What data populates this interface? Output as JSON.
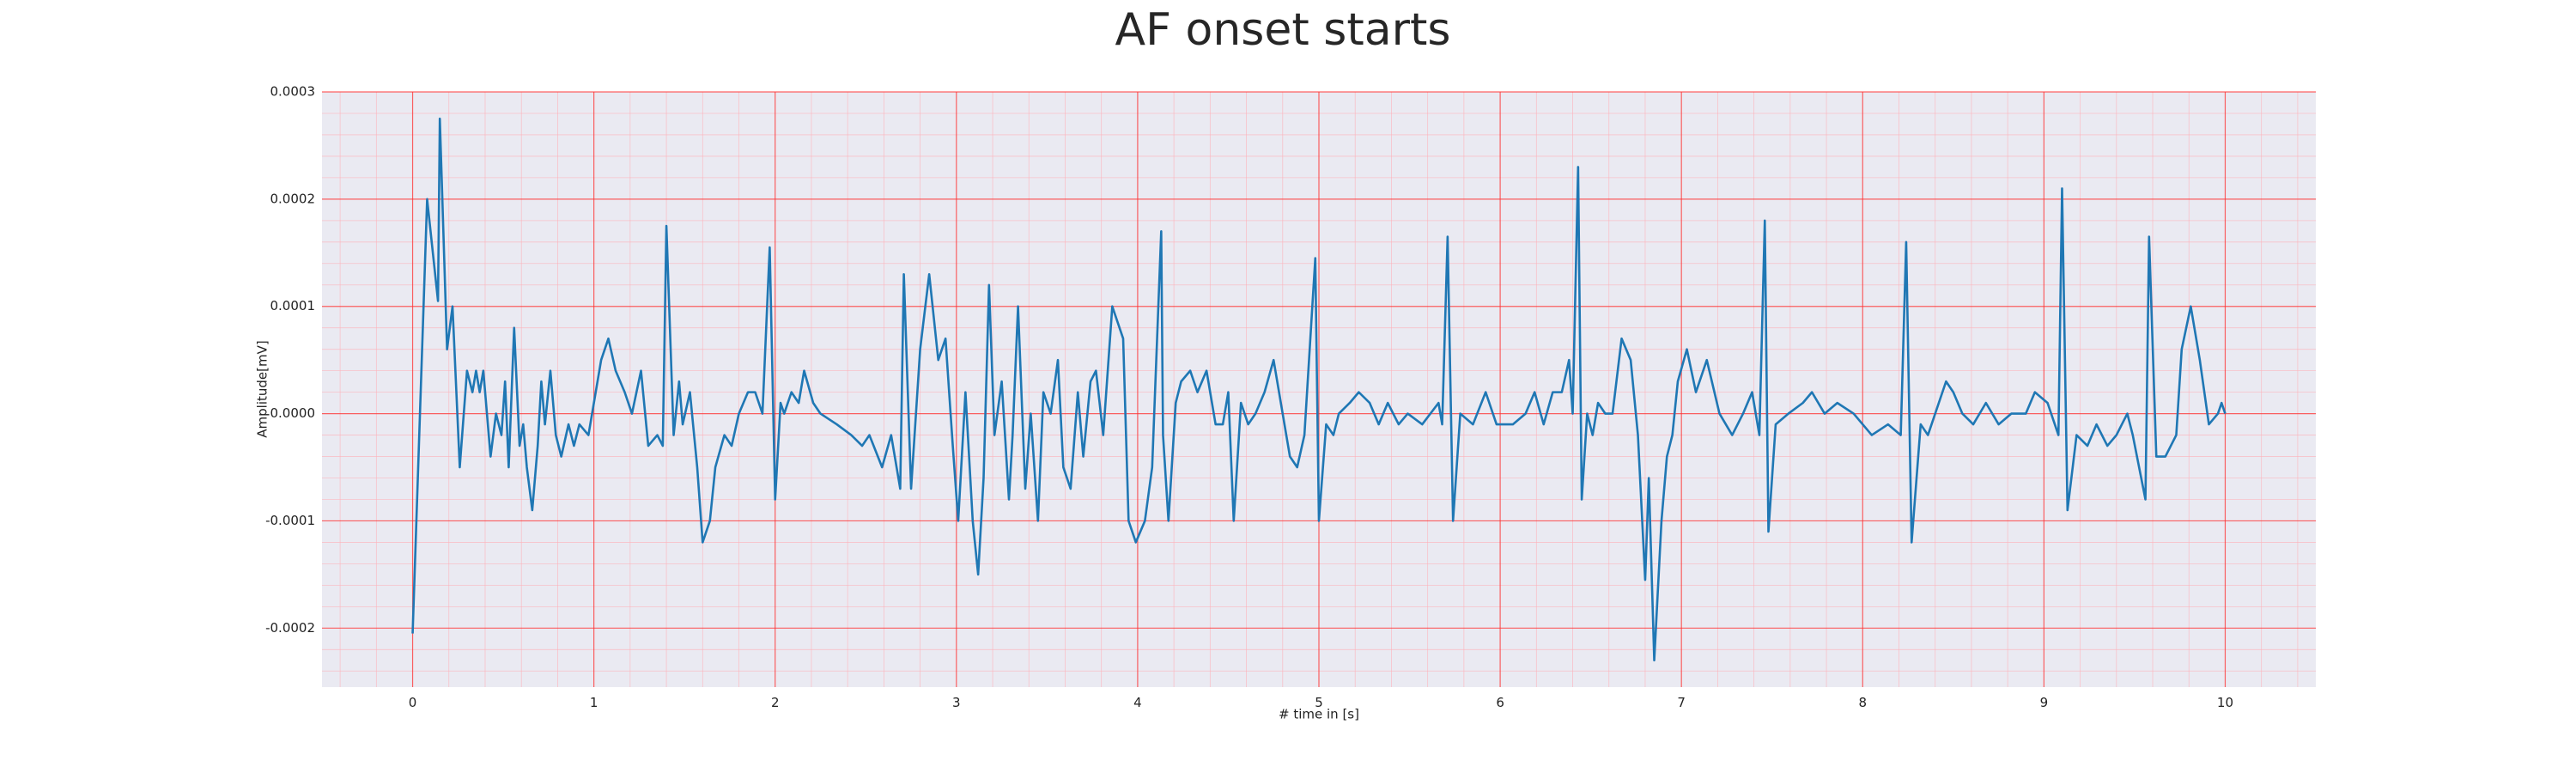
{
  "chart_data": {
    "type": "line",
    "title": "AF onset starts",
    "xlabel": "# time in [s]",
    "ylabel": "Amplitude[mV]",
    "color": "#1f77b4",
    "grid": true,
    "minor_grid": true,
    "xlim": [
      -0.5,
      10.5
    ],
    "xticks": [
      0,
      1,
      2,
      3,
      4,
      5,
      6,
      7,
      8,
      9,
      10
    ],
    "ylim": [
      -0.000255,
      0.0003
    ],
    "yticks": [
      0.0003,
      0.0002,
      0.0001,
      {
        "value": 0,
        "label": "0.0000"
      },
      -0.0001,
      -0.0002
    ],
    "x": [
      0,
      0.08,
      0.14,
      0.15,
      0.19,
      0.22,
      0.26,
      0.3,
      0.33,
      0.35,
      0.37,
      0.39,
      0.43,
      0.46,
      0.49,
      0.51,
      0.53,
      0.56,
      0.59,
      0.61,
      0.63,
      0.66,
      0.69,
      0.71,
      0.73,
      0.76,
      0.79,
      0.82,
      0.86,
      0.89,
      0.92,
      0.97,
      1.04,
      1.08,
      1.12,
      1.17,
      1.21,
      1.26,
      1.3,
      1.35,
      1.38,
      1.4,
      1.44,
      1.47,
      1.49,
      1.53,
      1.57,
      1.6,
      1.64,
      1.67,
      1.72,
      1.76,
      1.8,
      1.85,
      1.89,
      1.93,
      1.97,
      2.0,
      2.03,
      2.05,
      2.09,
      2.13,
      2.16,
      2.21,
      2.25,
      2.34,
      2.42,
      2.48,
      2.52,
      2.59,
      2.64,
      2.69,
      2.71,
      2.75,
      2.8,
      2.85,
      2.9,
      2.94,
      2.98,
      3.01,
      3.05,
      3.09,
      3.12,
      3.15,
      3.18,
      3.21,
      3.25,
      3.29,
      3.31,
      3.34,
      3.38,
      3.41,
      3.45,
      3.48,
      3.52,
      3.56,
      3.59,
      3.63,
      3.67,
      3.7,
      3.74,
      3.77,
      3.81,
      3.86,
      3.92,
      3.95,
      3.99,
      4.04,
      4.08,
      4.13,
      4.14,
      4.17,
      4.21,
      4.24,
      4.29,
      4.33,
      4.38,
      4.43,
      4.47,
      4.5,
      4.53,
      4.57,
      4.61,
      4.65,
      4.7,
      4.75,
      4.79,
      4.84,
      4.88,
      4.92,
      4.98,
      5.0,
      5.04,
      5.08,
      5.11,
      5.17,
      5.22,
      5.28,
      5.33,
      5.38,
      5.44,
      5.49,
      5.57,
      5.66,
      5.68,
      5.71,
      5.74,
      5.78,
      5.85,
      5.92,
      5.98,
      6.07,
      6.14,
      6.19,
      6.24,
      6.29,
      6.34,
      6.38,
      6.4,
      6.43,
      6.45,
      6.48,
      6.51,
      6.54,
      6.58,
      6.62,
      6.67,
      6.72,
      6.76,
      6.8,
      6.82,
      6.85,
      6.89,
      6.92,
      6.95,
      6.98,
      7.03,
      7.08,
      7.14,
      7.21,
      7.28,
      7.34,
      7.39,
      7.43,
      7.46,
      7.48,
      7.52,
      7.59,
      7.67,
      7.72,
      7.79,
      7.86,
      7.95,
      8.05,
      8.14,
      8.21,
      8.24,
      8.27,
      8.32,
      8.36,
      8.46,
      8.5,
      8.55,
      8.61,
      8.68,
      8.75,
      8.82,
      8.9,
      8.95,
      9.02,
      9.08,
      9.1,
      9.13,
      9.18,
      9.24,
      9.29,
      9.35,
      9.4,
      9.46,
      9.49,
      9.56,
      9.58,
      9.62,
      9.67,
      9.73,
      9.76,
      9.81,
      9.86,
      9.91,
      9.96,
      9.98,
      10.0
    ],
    "values": [
      -0.000205,
      0.0002,
      0.000105,
      0.000275,
      6e-05,
      0.0001,
      -5e-05,
      4e-05,
      2e-05,
      4e-05,
      2e-05,
      4e-05,
      -4e-05,
      0,
      -2e-05,
      3e-05,
      -5e-05,
      8e-05,
      -3e-05,
      -1e-05,
      -5e-05,
      -9e-05,
      -3e-05,
      3e-05,
      -1e-05,
      4e-05,
      -2e-05,
      -4e-05,
      -1e-05,
      -3e-05,
      -1e-05,
      -2e-05,
      5e-05,
      7e-05,
      4e-05,
      2e-05,
      0,
      4e-05,
      -3e-05,
      -2e-05,
      -3e-05,
      0.000175,
      -2e-05,
      3e-05,
      -1e-05,
      2e-05,
      -5e-05,
      -0.00012,
      -0.0001,
      -5e-05,
      -2e-05,
      -3e-05,
      0,
      2e-05,
      2e-05,
      0,
      0.000155,
      -8e-05,
      1e-05,
      0,
      2e-05,
      1e-05,
      4e-05,
      1e-05,
      0,
      -1e-05,
      -2e-05,
      -3e-05,
      -2e-05,
      -5e-05,
      -2e-05,
      -7e-05,
      0.00013,
      -7e-05,
      6e-05,
      0.00013,
      5e-05,
      7e-05,
      -3e-05,
      -0.0001,
      2e-05,
      -0.0001,
      -0.00015,
      -6e-05,
      0.00012,
      -2e-05,
      3e-05,
      -8e-05,
      -2e-05,
      0.0001,
      -7e-05,
      0,
      -0.0001,
      2e-05,
      0,
      5e-05,
      -5e-05,
      -7e-05,
      2e-05,
      -4e-05,
      3e-05,
      4e-05,
      -2e-05,
      0.0001,
      7e-05,
      -0.0001,
      -0.00012,
      -0.0001,
      -5e-05,
      0.00017,
      -2e-05,
      -0.0001,
      1e-05,
      3e-05,
      4e-05,
      2e-05,
      4e-05,
      -1e-05,
      -1e-05,
      2e-05,
      -0.0001,
      1e-05,
      -1e-05,
      0,
      2e-05,
      5e-05,
      1e-05,
      -4e-05,
      -5e-05,
      -2e-05,
      0.000145,
      -0.0001,
      -1e-05,
      -2e-05,
      0,
      1e-05,
      2e-05,
      1e-05,
      -1e-05,
      1e-05,
      -1e-05,
      0,
      -1e-05,
      1e-05,
      -1e-05,
      0.000165,
      -0.0001,
      0,
      -1e-05,
      2e-05,
      -1e-05,
      -1e-05,
      0,
      2e-05,
      -1e-05,
      2e-05,
      2e-05,
      5e-05,
      0,
      0.00023,
      -8e-05,
      0,
      -2e-05,
      1e-05,
      0,
      0,
      7e-05,
      5e-05,
      -2e-05,
      -0.000155,
      -6e-05,
      -0.00023,
      -0.0001,
      -4e-05,
      -2e-05,
      3e-05,
      6e-05,
      2e-05,
      5e-05,
      0,
      -2e-05,
      0,
      2e-05,
      -2e-05,
      0.00018,
      -0.00011,
      -1e-05,
      0,
      1e-05,
      2e-05,
      0,
      1e-05,
      0,
      -2e-05,
      -1e-05,
      -2e-05,
      0.00016,
      -0.00012,
      -1e-05,
      -2e-05,
      3e-05,
      2e-05,
      0,
      -1e-05,
      1e-05,
      -1e-05,
      0,
      0,
      2e-05,
      1e-05,
      -2e-05,
      0.00021,
      -9e-05,
      -2e-05,
      -3e-05,
      -1e-05,
      -3e-05,
      -2e-05,
      0,
      -2e-05,
      -8e-05,
      0.000165,
      -4e-05,
      -4e-05,
      -2e-05,
      6e-05,
      0.0001,
      5e-05,
      -1e-05,
      0,
      1e-05,
      0
    ]
  }
}
